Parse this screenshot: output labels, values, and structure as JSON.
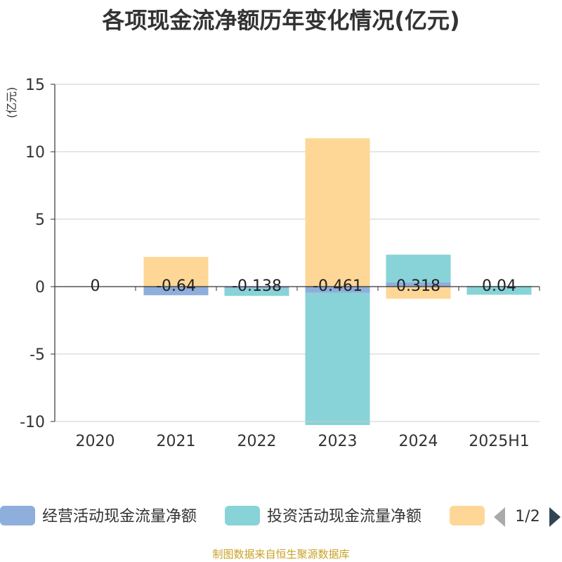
{
  "chart_data": {
    "type": "bar",
    "title": "各项现金流净额历年变化情况(亿元)",
    "ylabel": "(亿元)",
    "xlabel": "",
    "ylim": [
      -10,
      15
    ],
    "yticks": [
      15,
      10,
      5,
      0,
      -5,
      -10
    ],
    "grid": true,
    "categories": [
      "2020",
      "2021",
      "2022",
      "2023",
      "2024",
      "2025H1"
    ],
    "series": [
      {
        "name": "经营活动现金流量净额",
        "color": "#8eaedb",
        "values": [
          0,
          -0.64,
          -0.138,
          -0.461,
          0.318,
          0.04
        ],
        "labels": [
          "0",
          "-0.64",
          "-0.138",
          "-0.461",
          "0.318",
          "0.04"
        ]
      },
      {
        "name": "投资活动现金流量净额",
        "color": "#87d3d7",
        "values": [
          0,
          0,
          -0.55,
          -9.8,
          2.05,
          -0.6
        ]
      },
      {
        "name": "",
        "color": "#fed797",
        "values": [
          0,
          2.2,
          0,
          11.0,
          -0.9,
          0
        ]
      }
    ],
    "legend": {
      "placement": "bottom",
      "page": "1/2"
    }
  },
  "footer": {
    "source": "制图数据来自恒生聚源数据库"
  },
  "colors": {
    "axis": "#333333",
    "grid": "#cccccc",
    "ylabel": "#e0312b",
    "nav_inactive": "#aaaaaa",
    "nav_active": "#2f4554"
  }
}
